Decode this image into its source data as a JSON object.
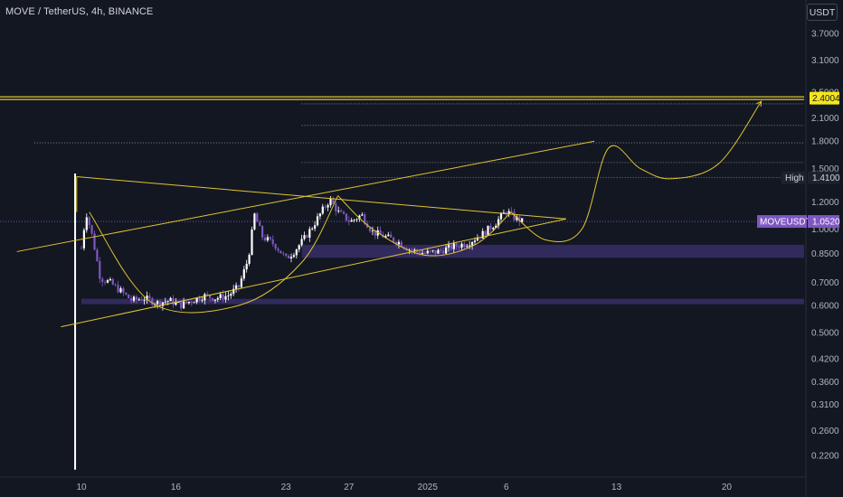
{
  "header": {
    "symbol_line": "MOVE / TetherUS, 4h, BINANCE",
    "currency_button": "USDT"
  },
  "colors": {
    "background": "#131722",
    "up_candle": "#ffffff",
    "down_candle": "#7e57c2",
    "drawing": "#e0c431",
    "zone": "#4a3a8c",
    "current_price_tag": "#7e57c2",
    "resistance_tag": "#f5e51b"
  },
  "icons": {
    "currency": "text-button"
  },
  "chart_data": {
    "type": "candlestick",
    "symbol": "MOVE / TetherUS",
    "timeframe": "4h",
    "exchange": "BINANCE",
    "scale": "log",
    "grid": false,
    "ylim": [
      0.2,
      4.2
    ],
    "y_ticks": [
      "3.7000",
      "3.1000",
      "2.5000",
      "2.1000",
      "1.8000",
      "1.5000",
      "1.2000",
      "1.0000",
      "0.8500",
      "0.7000",
      "0.6000",
      "0.5000",
      "0.4200",
      "0.3600",
      "0.3100",
      "0.2600",
      "0.2200"
    ],
    "x_ticks": [
      {
        "label": "10",
        "day": 0
      },
      {
        "label": "16",
        "day": 6
      },
      {
        "label": "23",
        "day": 13
      },
      {
        "label": "27",
        "day": 17
      },
      {
        "label": "2025",
        "day": 22
      },
      {
        "label": "6",
        "day": 27
      },
      {
        "label": "13",
        "day": 34
      },
      {
        "label": "20",
        "day": 41
      }
    ],
    "tags": [
      {
        "label": "",
        "value": "2.4004",
        "price": 2.4004,
        "style": "resistance"
      },
      {
        "label": "High",
        "value": "1.4100",
        "price": 1.41,
        "style": "high"
      },
      {
        "label": "MOVEUSDT",
        "value": "1.0520",
        "price": 1.052,
        "style": "current"
      }
    ],
    "price_path": [
      [
        0,
        0.88
      ],
      [
        0.3,
        1.12
      ],
      [
        0.7,
        0.95
      ],
      [
        1.2,
        0.72
      ],
      [
        1.8,
        0.7
      ],
      [
        2.5,
        0.66
      ],
      [
        3.2,
        0.62
      ],
      [
        4,
        0.63
      ],
      [
        4.8,
        0.61
      ],
      [
        5.6,
        0.62
      ],
      [
        6.3,
        0.6
      ],
      [
        7,
        0.62
      ],
      [
        7.8,
        0.64
      ],
      [
        8.5,
        0.63
      ],
      [
        9.3,
        0.64
      ],
      [
        10,
        0.68
      ],
      [
        10.6,
        0.82
      ],
      [
        11,
        1.1
      ],
      [
        11.5,
        0.95
      ],
      [
        12.3,
        0.9
      ],
      [
        13,
        0.82
      ],
      [
        13.5,
        0.86
      ],
      [
        14.1,
        0.93
      ],
      [
        14.7,
        1.02
      ],
      [
        15.3,
        1.13
      ],
      [
        15.8,
        1.22
      ],
      [
        16.3,
        1.12
      ],
      [
        17.1,
        1.05
      ],
      [
        17.8,
        1.1
      ],
      [
        18.5,
        0.98
      ],
      [
        19.3,
        0.95
      ],
      [
        20.1,
        0.92
      ],
      [
        20.9,
        0.87
      ],
      [
        21.8,
        0.85
      ],
      [
        22.7,
        0.86
      ],
      [
        23.6,
        0.89
      ],
      [
        24.5,
        0.91
      ],
      [
        25.4,
        0.96
      ],
      [
        26.3,
        1.04
      ],
      [
        27,
        1.13
      ],
      [
        27.5,
        1.08
      ],
      [
        28,
        1.052
      ]
    ],
    "initial_wick": {
      "day": -0.4,
      "low": 0.2,
      "high": 1.45
    },
    "drawings": {
      "descending_line": [
        [
          -0.3,
          1.42
        ],
        [
          30.8,
          1.07
        ]
      ],
      "ascending_resistance": [
        [
          -4.1,
          0.86
        ],
        [
          32.6,
          1.8
        ]
      ],
      "ascending_support": [
        [
          -1.3,
          0.52
        ],
        [
          30.8,
          1.07
        ]
      ],
      "cup_1": [
        [
          0.5,
          1.12
        ],
        [
          4.5,
          0.61
        ],
        [
          10,
          0.6
        ],
        [
          14,
          0.8
        ],
        [
          16.3,
          1.25
        ]
      ],
      "cup_2": [
        [
          16.3,
          1.25
        ],
        [
          18.5,
          1.0
        ],
        [
          21.8,
          0.84
        ],
        [
          25,
          0.9
        ],
        [
          27.3,
          1.12
        ]
      ],
      "projection": [
        [
          27.3,
          1.12
        ],
        [
          29.5,
          0.93
        ],
        [
          31.8,
          1.0
        ],
        [
          33.5,
          1.72
        ],
        [
          35.5,
          1.5
        ],
        [
          37.5,
          1.4
        ],
        [
          40.5,
          1.55
        ],
        [
          43.2,
          2.35
        ]
      ],
      "resistance_level": 2.4004,
      "dotted_levels": [
        {
          "price": 2.31,
          "from_day": 14
        },
        {
          "price": 2.0,
          "from_day": 14
        },
        {
          "price": 1.78,
          "from_day": -3
        },
        {
          "price": 1.56,
          "from_day": 14
        },
        {
          "price": 1.41,
          "from_day": 14
        }
      ],
      "zones": [
        {
          "low": 0.825,
          "high": 0.9,
          "from_day": 14
        },
        {
          "low": 0.605,
          "high": 0.627,
          "from_day": 0
        }
      ],
      "current_price_line": 1.052
    }
  }
}
